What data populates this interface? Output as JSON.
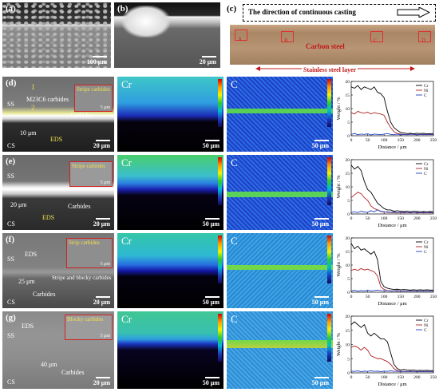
{
  "top": {
    "a": {
      "label": "(a)",
      "scale": "100 μm"
    },
    "b": {
      "label": "(b)",
      "scale": "20 μm"
    },
    "c": {
      "label": "(c)",
      "direction_text": "The direction of continuous casting",
      "boxes": [
        "A",
        "B",
        "C",
        "D"
      ],
      "carbon_steel": "Carbon steel",
      "stainless_layer": "Stainless steel layer"
    }
  },
  "rows": [
    {
      "label": "(d)",
      "sem_texts": [
        "SS",
        "M23C6 carbides",
        "Stripe carbides",
        "10 μm",
        "Carbides",
        "EDS",
        "CS",
        "1",
        "2"
      ],
      "scale": "20 μm",
      "map_scale": "50 μm",
      "inset_scale": "5 μm"
    },
    {
      "label": "(e)",
      "sem_texts": [
        "SS",
        "Stripe carbides",
        "20 μm",
        "EDS",
        "Carbides",
        "CS"
      ],
      "scale": "20 μm",
      "map_scale": "50 μm",
      "inset_scale": "5 μm"
    },
    {
      "label": "(f)",
      "sem_texts": [
        "SS",
        "EDS",
        "Strip carbides",
        "25 μm",
        "Stripe and blocky carbides",
        "Carbides",
        "CS"
      ],
      "scale": "20 μm",
      "map_scale": "50 μm",
      "inset_scale": "5 μm"
    },
    {
      "label": "(g)",
      "sem_texts": [
        "SS",
        "EDS",
        "Blocky carbides",
        "40 μm",
        "Carbides",
        "CS"
      ],
      "scale": "20 μm",
      "map_scale": "50 μm",
      "inset_scale": "5 μm"
    }
  ],
  "maps": {
    "cr_title": "Cr",
    "c_title": "C"
  },
  "chart_data": [
    {
      "type": "line",
      "xlabel": "Distance / μm",
      "ylabel": "Weight / %",
      "xlim": [
        0,
        250
      ],
      "ylim": [
        0,
        20
      ],
      "xticks": [
        0,
        50,
        100,
        150,
        200,
        250
      ],
      "yticks": [
        0,
        5,
        10,
        15,
        20
      ],
      "x": [
        0,
        10,
        20,
        30,
        40,
        50,
        60,
        70,
        80,
        90,
        100,
        110,
        120,
        130,
        140,
        150,
        160,
        170,
        180,
        190,
        200,
        210,
        220,
        230,
        240,
        250
      ],
      "series": [
        {
          "name": "Cr",
          "color": "#000000",
          "values": [
            18,
            17.5,
            18.5,
            17,
            18,
            17.5,
            17,
            18,
            16,
            15.5,
            14,
            9,
            5,
            3,
            2,
            1.2,
            1,
            0.8,
            0.9,
            0.7,
            0.9,
            0.8,
            0.9,
            0.7,
            0.8,
            0.8
          ]
        },
        {
          "name": "Ni",
          "color": "#b22222",
          "values": [
            8.5,
            8,
            9,
            8.5,
            8.3,
            8.7,
            8,
            8.5,
            8.2,
            8,
            7.5,
            5,
            3,
            1.5,
            0.8,
            0.6,
            0.5,
            0.4,
            0.5,
            0.5,
            0.4,
            0.5,
            0.5,
            0.4,
            0.5,
            0.5
          ]
        },
        {
          "name": "C",
          "color": "#1f3fbf",
          "values": [
            0.5,
            0.8,
            0.4,
            0.6,
            0.5,
            0.7,
            0.3,
            0.6,
            0.5,
            0.4,
            0.6,
            0.8,
            0.5,
            0.4,
            0.6,
            0.3,
            0.5,
            0.4,
            0.6,
            0.5,
            0.3,
            0.5,
            0.4,
            0.6,
            0.4,
            0.5
          ]
        }
      ]
    },
    {
      "type": "line",
      "xlabel": "Distance / μm",
      "ylabel": "Weight / %",
      "xlim": [
        0,
        250
      ],
      "ylim": [
        0,
        20
      ],
      "xticks": [
        0,
        50,
        100,
        150,
        200,
        250
      ],
      "yticks": [
        0,
        5,
        10,
        15,
        20
      ],
      "x": [
        0,
        10,
        20,
        30,
        40,
        50,
        60,
        70,
        80,
        90,
        100,
        110,
        120,
        130,
        140,
        150,
        160,
        170,
        180,
        190,
        200,
        210,
        220,
        230,
        240,
        250
      ],
      "series": [
        {
          "name": "Cr",
          "color": "#000000",
          "values": [
            18,
            16.5,
            17.5,
            16,
            12,
            9,
            8,
            6,
            4,
            3,
            2,
            1.5,
            1.5,
            1,
            1.2,
            1,
            0.9,
            1,
            0.8,
            1,
            0.9,
            0.8,
            0.9,
            0.8,
            0.9,
            0.8
          ]
        },
        {
          "name": "Ni",
          "color": "#b22222",
          "values": [
            6,
            7,
            8,
            7.5,
            6,
            5,
            3,
            2,
            1.5,
            1,
            0.8,
            0.6,
            0.5,
            0.5,
            0.4,
            0.5,
            0.4,
            0.5,
            0.4,
            0.5,
            0.4,
            0.5,
            0.4,
            0.5,
            0.4,
            0.5
          ]
        },
        {
          "name": "C",
          "color": "#1f3fbf",
          "values": [
            0.6,
            0.8,
            0.5,
            1,
            0.7,
            0.6,
            1.2,
            0.8,
            1.5,
            0.9,
            0.7,
            0.8,
            0.6,
            0.7,
            0.5,
            0.6,
            0.7,
            0.5,
            0.6,
            0.5,
            0.6,
            0.5,
            0.6,
            0.5,
            0.6,
            0.5
          ]
        }
      ]
    },
    {
      "type": "line",
      "xlabel": "Distance / μm",
      "ylabel": "Weight / %",
      "xlim": [
        0,
        250
      ],
      "ylim": [
        0,
        20
      ],
      "xticks": [
        0,
        50,
        100,
        150,
        200,
        250
      ],
      "yticks": [
        0,
        5,
        10,
        15,
        20
      ],
      "x": [
        0,
        10,
        20,
        30,
        40,
        50,
        60,
        70,
        80,
        90,
        100,
        110,
        120,
        130,
        140,
        150,
        160,
        170,
        180,
        190,
        200,
        210,
        220,
        230,
        240,
        250
      ],
      "series": [
        {
          "name": "Cr",
          "color": "#000000",
          "values": [
            18,
            16,
            17,
            15.5,
            16,
            15,
            14,
            15,
            12,
            4,
            2,
            1.5,
            1.2,
            1,
            1.1,
            0.9,
            1,
            0.9,
            0.8,
            0.9,
            0.8,
            0.9,
            0.8,
            0.9,
            0.8,
            0.8
          ]
        },
        {
          "name": "Ni",
          "color": "#b22222",
          "values": [
            8,
            8.5,
            8,
            8.7,
            8.2,
            8.5,
            8,
            7.5,
            6,
            2,
            1,
            0.6,
            0.5,
            0.5,
            0.4,
            0.5,
            0.4,
            0.5,
            0.4,
            0.5,
            0.4,
            0.5,
            0.4,
            0.5,
            0.4,
            0.5
          ]
        },
        {
          "name": "C",
          "color": "#1f3fbf",
          "values": [
            0.5,
            0.7,
            0.4,
            0.6,
            0.5,
            0.7,
            0.5,
            0.6,
            0.8,
            0.6,
            0.5,
            0.6,
            0.4,
            0.5,
            0.6,
            0.4,
            0.5,
            0.4,
            0.6,
            0.4,
            0.5,
            0.4,
            0.5,
            0.4,
            0.5,
            0.4
          ]
        }
      ]
    },
    {
      "type": "line",
      "xlabel": "Distance / μm",
      "ylabel": "Weight / %",
      "xlim": [
        0,
        250
      ],
      "ylim": [
        0,
        20
      ],
      "xticks": [
        0,
        50,
        100,
        150,
        200,
        250
      ],
      "yticks": [
        0,
        5,
        10,
        15,
        20
      ],
      "x": [
        0,
        10,
        20,
        30,
        40,
        50,
        60,
        70,
        80,
        90,
        100,
        110,
        120,
        130,
        140,
        150,
        160,
        170,
        180,
        190,
        200,
        210,
        220,
        230,
        240,
        250
      ],
      "series": [
        {
          "name": "Cr",
          "color": "#000000",
          "values": [
            17,
            18,
            17,
            16,
            17,
            14,
            13,
            14,
            13,
            12,
            12,
            11,
            7,
            3,
            1.5,
            1,
            1.2,
            1,
            0.9,
            1,
            0.8,
            0.9,
            0.8,
            0.9,
            0.8,
            0.8
          ]
        },
        {
          "name": "Ni",
          "color": "#b22222",
          "values": [
            9,
            9.5,
            9,
            8,
            9,
            8,
            6,
            5.5,
            5,
            5,
            4.5,
            4,
            3,
            1.5,
            0.8,
            0.6,
            0.5,
            0.5,
            0.4,
            0.5,
            0.4,
            0.5,
            0.4,
            0.5,
            0.4,
            0.5
          ]
        },
        {
          "name": "C",
          "color": "#1f3fbf",
          "values": [
            0.6,
            0.5,
            0.7,
            0.4,
            0.6,
            0.5,
            0.7,
            0.5,
            0.6,
            0.4,
            0.6,
            0.5,
            0.7,
            0.5,
            0.6,
            0.4,
            0.5,
            0.4,
            0.6,
            0.4,
            0.5,
            0.4,
            0.5,
            0.4,
            0.5,
            0.4
          ]
        }
      ]
    }
  ]
}
